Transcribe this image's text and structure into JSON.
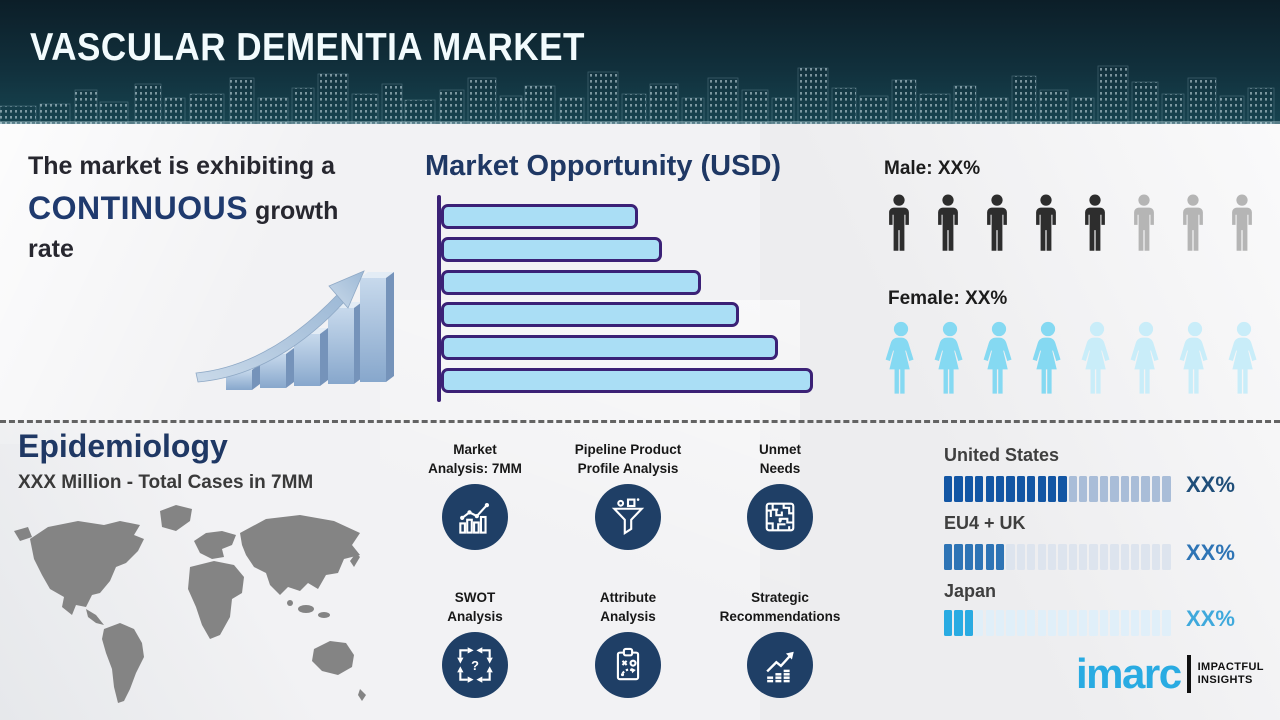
{
  "header": {
    "title": "VASCULAR DEMENTIA MARKET"
  },
  "growth_statement": {
    "line1": "The market is exhibiting a",
    "highlight": "CONTINUOUS",
    "line2_rest": " growth",
    "line3": "rate"
  },
  "market_opportunity": {
    "title": "Market Opportunity (USD)"
  },
  "demographics": {
    "male_label": "Male: XX%",
    "female_label": "Female: XX%"
  },
  "epidemiology": {
    "title": "Epidemiology",
    "subtitle": "XXX Million - Total Cases in 7MM"
  },
  "features": [
    {
      "lines": [
        "Market",
        "Analysis: 7MM"
      ],
      "icon": "bar-chart-trend-icon"
    },
    {
      "lines": [
        "Pipeline Product",
        "Profile Analysis"
      ],
      "icon": "funnel-icon"
    },
    {
      "lines": [
        "Unmet",
        "Needs"
      ],
      "icon": "maze-icon"
    },
    {
      "lines": [
        "SWOT",
        "Analysis"
      ],
      "icon": "swot-arrows-question-icon"
    },
    {
      "lines": [
        "Attribute",
        "Analysis"
      ],
      "icon": "clipboard-strategy-icon"
    },
    {
      "lines": [
        "Strategic",
        "Recommendations"
      ],
      "icon": "growth-arrow-bars-icon"
    }
  ],
  "regions": [
    {
      "name": "United States",
      "value_label": "XX%"
    },
    {
      "name": "EU4 + UK",
      "value_label": "XX%"
    },
    {
      "name": "Japan",
      "value_label": "XX%"
    }
  ],
  "logo": {
    "brand": "imarc",
    "tagline_line1": "IMPACTFUL",
    "tagline_line2": "INSIGHTS"
  },
  "colors": {
    "header_bg": "#11303c",
    "title_text": "#f2fbfd",
    "navy_heading": "#1f3864",
    "charcoal_text": "#27272f",
    "icon_circle": "#1f3f66",
    "imarc_blue": "#29abe2",
    "map_gray": "#848484"
  },
  "chart_data": [
    {
      "type": "bar",
      "title": "Market Opportunity (USD)",
      "orientation": "horizontal",
      "categories": [
        "bar-1",
        "bar-2",
        "bar-3",
        "bar-4",
        "bar-5",
        "bar-6"
      ],
      "values": [
        197,
        221,
        260,
        298,
        337,
        372
      ],
      "unit": "relative length in px (chart shows no numeric axis labels)",
      "bar_fill": "#aadef5",
      "bar_border": "#3b2176",
      "row_pitch": 32.8,
      "note": "six ascending rounded bars on a purple vertical axis, no gridlines or tick labels"
    },
    {
      "type": "pictograph",
      "series": [
        {
          "name": "Male",
          "label": "Male: XX%",
          "filled": 5,
          "total": 8,
          "filled_color": "#2d2d2d",
          "empty_color": "#b5b5b5"
        },
        {
          "name": "Female",
          "label": "Female: XX%",
          "filled": 4,
          "total": 8,
          "filled_color": "#85d9f2",
          "empty_color": "#c9edf9"
        }
      ]
    },
    {
      "type": "bar",
      "subtype": "segmented-progress",
      "categories": [
        "United States",
        "EU4 + UK",
        "Japan"
      ],
      "series": [
        {
          "name": "United States",
          "filled": 12,
          "total": 22,
          "value_label": "XX%",
          "filled_color": "#1356a4",
          "empty_color": "#a9bdd8",
          "label_color": "#1f4e79"
        },
        {
          "name": "EU4 + UK",
          "filled": 6,
          "total": 22,
          "value_label": "XX%",
          "filled_color": "#2e74b5",
          "empty_color": "#dde4ee",
          "label_color": "#2e74b5"
        },
        {
          "name": "Japan",
          "filled": 3,
          "total": 22,
          "value_label": "XX%",
          "filled_color": "#29abe2",
          "empty_color": "#e0eff9",
          "label_color": "#3fa9dc"
        }
      ]
    }
  ]
}
